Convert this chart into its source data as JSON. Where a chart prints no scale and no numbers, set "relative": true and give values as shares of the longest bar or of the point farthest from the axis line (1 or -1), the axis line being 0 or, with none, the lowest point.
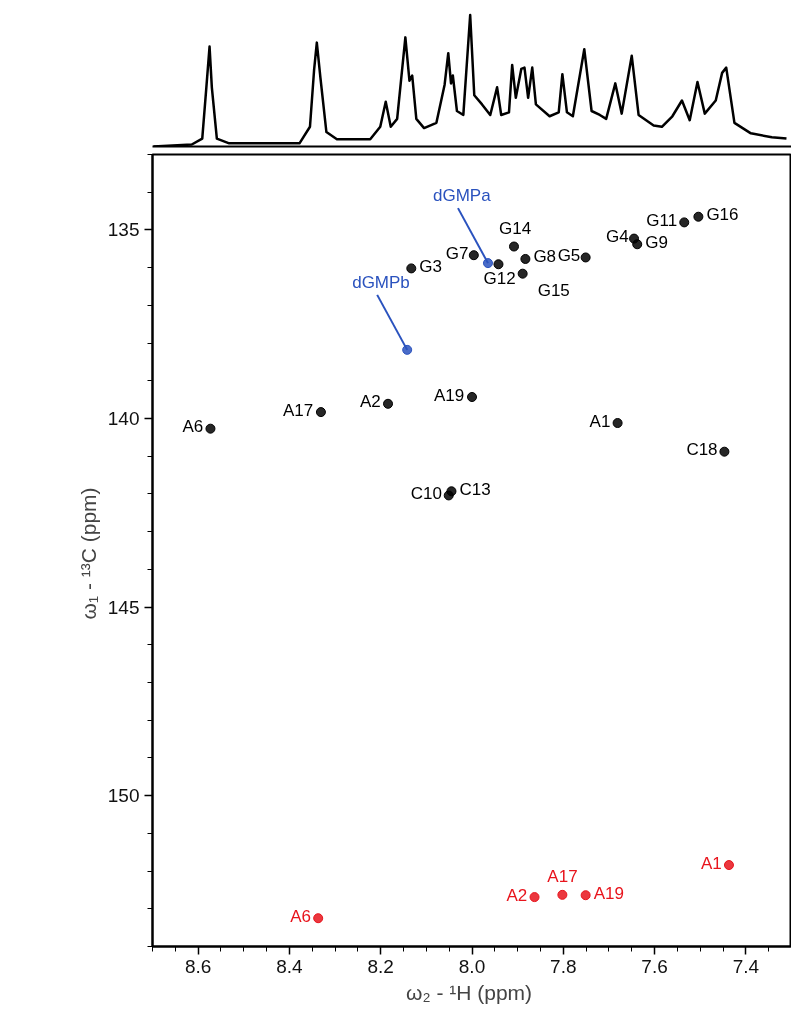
{
  "chart_data": [
    {
      "type": "line",
      "relative": true,
      "tick_labels": false,
      "marker": "none",
      "line_style": "solid",
      "xlim": [
        8.7,
        7.3
      ],
      "series": [
        {
          "color": "#000000",
          "x": [
            8.698,
            8.614,
            8.591,
            8.582,
            8.575,
            8.57,
            8.559,
            8.532,
            8.378,
            8.355,
            8.346,
            8.34,
            8.332,
            8.319,
            8.296,
            8.223,
            8.201,
            8.189,
            8.178,
            8.164,
            8.146,
            8.137,
            8.131,
            8.122,
            8.105,
            8.078,
            8.06,
            8.052,
            8.046,
            8.042,
            8.033,
            8.019,
            8.004,
            7.995,
            7.978,
            7.96,
            7.945,
            7.936,
            7.919,
            7.912,
            7.904,
            7.892,
            7.885,
            7.877,
            7.868,
            7.86,
            7.83,
            7.81,
            7.802,
            7.792,
            7.779,
            7.754,
            7.738,
            7.72,
            7.706,
            7.686,
            7.672,
            7.65,
            7.635,
            7.602,
            7.584,
            7.561,
            7.54,
            7.523,
            7.506,
            7.49,
            7.466,
            7.452,
            7.443,
            7.425,
            7.389,
            7.343,
            7.311
          ],
          "values": [
            0,
            0.015,
            0.06,
            0.45,
            0.76,
            0.45,
            0.06,
            0.024,
            0.024,
            0.15,
            0.58,
            0.79,
            0.52,
            0.11,
            0.055,
            0.055,
            0.15,
            0.34,
            0.15,
            0.21,
            0.83,
            0.5,
            0.54,
            0.21,
            0.14,
            0.18,
            0.47,
            0.71,
            0.48,
            0.54,
            0.27,
            0.24,
            1,
            0.39,
            0.32,
            0.24,
            0.45,
            0.24,
            0.26,
            0.62,
            0.37,
            0.59,
            0.6,
            0.37,
            0.6,
            0.32,
            0.23,
            0.26,
            0.55,
            0.26,
            0.23,
            0.74,
            0.27,
            0.24,
            0.21,
            0.48,
            0.25,
            0.69,
            0.24,
            0.16,
            0.15,
            0.23,
            0.35,
            0.2,
            0.49,
            0.25,
            0.35,
            0.56,
            0.6,
            0.18,
            0.1,
            0.07,
            0.06
          ]
        }
      ]
    },
    {
      "type": "scatter",
      "xlabel": "ω₂ - ¹H  (ppm)",
      "ylabel": "ω₁ - ¹³C  (ppm)",
      "marker": "circle",
      "xlim": [
        8.7,
        7.3
      ],
      "ylim": [
        154,
        133
      ],
      "xticks": [
        8.6,
        8.4,
        8.2,
        {
          "value": 8,
          "label": "8.0"
        },
        7.8,
        7.6,
        7.4
      ],
      "yticks": [
        135,
        140,
        145,
        150
      ],
      "series": [
        {
          "color": "#000000",
          "x": [
            8.573,
            8.331,
            8.184,
            8.133,
            8.0,
            7.996,
            7.942,
            7.908,
            7.883,
            7.889,
            7.751,
            7.645,
            7.638,
            7.535,
            7.504,
            7.681,
            7.447,
            8.045,
            8.051
          ],
          "values": [
            140.27,
            139.83,
            139.61,
            136.02,
            139.43,
            135.67,
            135.91,
            135.44,
            135.77,
            136.16,
            135.73,
            135.23,
            135.38,
            134.8,
            134.65,
            140.12,
            140.88,
            141.93,
            142.04
          ],
          "value_labels": [
            "A6",
            "A17",
            "A2",
            "G3",
            "A19",
            "G7",
            "G12",
            "G14",
            "G8",
            "G15",
            "G5",
            "G4",
            "G9",
            "G11",
            "G16",
            "A1",
            "C18",
            "C13",
            "C10"
          ]
        },
        {
          "color": "#2a52be",
          "x": [
            7.965,
            8.142
          ],
          "values": [
            135.88,
            138.18
          ],
          "value_labels": [
            "dGMPa",
            "dGMPb"
          ]
        },
        {
          "color": "#e8141c",
          "x": [
            8.337,
            7.863,
            7.802,
            7.751,
            7.437
          ],
          "values": [
            153.25,
            152.69,
            152.63,
            152.64,
            151.84
          ],
          "value_labels": [
            "A6",
            "A2",
            "A17",
            "A19",
            "A1"
          ]
        }
      ]
    }
  ]
}
